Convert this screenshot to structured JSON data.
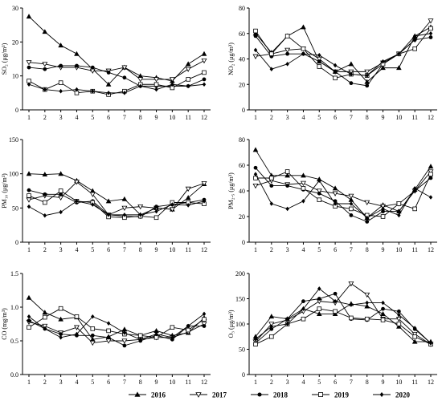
{
  "chart_data": [
    {
      "type": "line",
      "ylabel": "SO₂ (μg/m³)",
      "categories": [
        "1",
        "2",
        "3",
        "4",
        "5",
        "6",
        "7",
        "8",
        "9",
        "10",
        "11",
        "12"
      ],
      "ylim": [
        0,
        30
      ],
      "yticks": [
        0,
        10,
        20,
        30
      ],
      "yticklabels": [
        "0",
        "10",
        "20",
        "30"
      ],
      "series": [
        {
          "name": "2016",
          "values": [
            27.5,
            23,
            19,
            16.5,
            12,
            7.5,
            12.5,
            10,
            9.5,
            8.5,
            13.5,
            16.5
          ]
        },
        {
          "name": "2017",
          "values": [
            14,
            13.5,
            12.5,
            12.5,
            11.5,
            11.5,
            12.5,
            9,
            9,
            9,
            12,
            14.5
          ]
        },
        {
          "name": "2018",
          "values": [
            12.5,
            12,
            13,
            13,
            12.5,
            11,
            9.5,
            7,
            7,
            7,
            7,
            9
          ]
        },
        {
          "name": "2019",
          "values": [
            8.5,
            6,
            8,
            5,
            5.5,
            4.5,
            5.5,
            7.5,
            7.5,
            6.5,
            9,
            11
          ]
        },
        {
          "name": "2020",
          "values": [
            7.5,
            6,
            5.5,
            6,
            5.5,
            5,
            5,
            7,
            6,
            7.5,
            7,
            7.5
          ]
        }
      ]
    },
    {
      "type": "line",
      "ylabel": "NO₂ (μg/m³)",
      "categories": [
        "1",
        "2",
        "3",
        "4",
        "5",
        "6",
        "7",
        "8",
        "9",
        "10",
        "11",
        "12"
      ],
      "ylim": [
        0,
        80
      ],
      "yticks": [
        0,
        20,
        40,
        60,
        80
      ],
      "yticklabels": [
        "0",
        "20",
        "40",
        "60",
        "80"
      ],
      "series": [
        {
          "name": "2016",
          "values": [
            60,
            45,
            58,
            65,
            38,
            30,
            36,
            22,
            33,
            33,
            58,
            65
          ]
        },
        {
          "name": "2017",
          "values": [
            42,
            44,
            47,
            48,
            40,
            30,
            30,
            30,
            37,
            44,
            55,
            70
          ]
        },
        {
          "name": "2018",
          "values": [
            58,
            42,
            44,
            44,
            38,
            30,
            21,
            19,
            36,
            44,
            55,
            57
          ]
        },
        {
          "name": "2019",
          "values": [
            62,
            44,
            58,
            48,
            34,
            25,
            28,
            27,
            36,
            44,
            48,
            64
          ]
        },
        {
          "name": "2020",
          "values": [
            47,
            32,
            36,
            44,
            43,
            35,
            28,
            27,
            38,
            44,
            58,
            60
          ]
        }
      ]
    },
    {
      "type": "line",
      "ylabel": "PM₁₀ (μg/m³)",
      "categories": [
        "1",
        "2",
        "3",
        "4",
        "5",
        "6",
        "7",
        "8",
        "9",
        "10",
        "11",
        "12"
      ],
      "ylim": [
        0,
        150
      ],
      "yticks": [
        0,
        50,
        100,
        150
      ],
      "yticklabels": [
        "0",
        "50",
        "100",
        "150"
      ],
      "series": [
        {
          "name": "2016",
          "values": [
            100,
            99,
            100,
            90,
            75,
            60,
            63,
            40,
            50,
            48,
            65,
            85
          ]
        },
        {
          "name": "2017",
          "values": [
            62,
            68,
            65,
            88,
            70,
            40,
            50,
            52,
            50,
            48,
            78,
            86
          ]
        },
        {
          "name": "2018",
          "values": [
            76,
            70,
            70,
            58,
            60,
            40,
            38,
            37,
            52,
            55,
            58,
            62
          ]
        },
        {
          "name": "2019",
          "values": [
            68,
            58,
            75,
            60,
            58,
            37,
            36,
            38,
            36,
            58,
            58,
            56
          ]
        },
        {
          "name": "2020",
          "values": [
            52,
            39,
            44,
            60,
            55,
            40,
            40,
            40,
            45,
            55,
            54,
            60
          ]
        }
      ]
    },
    {
      "type": "line",
      "ylabel": "PM₂.₅ (μg/m³)",
      "categories": [
        "1",
        "2",
        "3",
        "4",
        "5",
        "6",
        "7",
        "8",
        "9",
        "10",
        "11",
        "12"
      ],
      "ylim": [
        0,
        80
      ],
      "yticks": [
        0,
        20,
        40,
        60,
        80
      ],
      "yticklabels": [
        "0",
        "20",
        "40",
        "60",
        "80"
      ],
      "series": [
        {
          "name": "2016",
          "values": [
            72,
            52,
            52,
            52,
            49,
            42,
            33,
            19,
            29,
            24,
            41,
            59
          ]
        },
        {
          "name": "2017",
          "values": [
            44,
            48,
            45,
            46,
            40,
            38,
            36,
            31,
            28,
            30,
            40,
            55
          ]
        },
        {
          "name": "2018",
          "values": [
            58,
            44,
            44,
            41,
            38,
            32,
            21,
            16,
            24,
            24,
            40,
            50
          ]
        },
        {
          "name": "2019",
          "values": [
            50,
            50,
            55,
            42,
            33,
            28,
            26,
            21,
            20,
            30,
            26,
            53
          ]
        },
        {
          "name": "2020",
          "values": [
            53,
            30,
            26,
            32,
            48,
            30,
            30,
            19,
            26,
            21,
            42,
            35
          ]
        }
      ]
    },
    {
      "type": "line",
      "ylabel": "CO (mg/m³)",
      "categories": [
        "1",
        "2",
        "3",
        "4",
        "5",
        "6",
        "7",
        "8",
        "9",
        "10",
        "11",
        "12"
      ],
      "ylim": [
        0,
        1.5
      ],
      "yticks": [
        0,
        0.5,
        1.0,
        1.5
      ],
      "yticklabels": [
        "0.0",
        "0.5",
        "1.0",
        "1.5"
      ],
      "series": [
        {
          "name": "2016",
          "values": [
            1.14,
            0.92,
            0.82,
            0.85,
            0.52,
            0.56,
            0.67,
            0.58,
            0.65,
            0.58,
            0.62,
            0.84
          ]
        },
        {
          "name": "2017",
          "values": [
            0.78,
            0.72,
            0.62,
            0.7,
            0.47,
            0.5,
            0.5,
            0.52,
            0.55,
            0.55,
            0.63,
            0.75
          ]
        },
        {
          "name": "2018",
          "values": [
            0.8,
            0.68,
            0.6,
            0.58,
            0.58,
            0.55,
            0.43,
            0.5,
            0.58,
            0.52,
            0.72,
            0.72
          ]
        },
        {
          "name": "2019",
          "values": [
            0.7,
            0.85,
            0.98,
            0.86,
            0.68,
            0.65,
            0.6,
            0.58,
            0.55,
            0.7,
            0.66,
            0.82
          ]
        },
        {
          "name": "2020",
          "values": [
            0.86,
            0.68,
            0.55,
            0.6,
            0.86,
            0.76,
            0.62,
            0.52,
            0.6,
            0.55,
            0.72,
            0.9
          ]
        }
      ]
    },
    {
      "type": "line",
      "ylabel": "O₃ (μg/m³)",
      "categories": [
        "1",
        "2",
        "3",
        "4",
        "5",
        "6",
        "7",
        "8",
        "9",
        "10",
        "11",
        "12"
      ],
      "ylim": [
        0,
        200
      ],
      "yticks": [
        0,
        50,
        100,
        150,
        200
      ],
      "yticklabels": [
        "0",
        "50",
        "100",
        "150",
        "200"
      ],
      "series": [
        {
          "name": "2016",
          "values": [
            75,
            115,
            110,
            130,
            120,
            120,
            140,
            135,
            120,
            95,
            65,
            65
          ]
        },
        {
          "name": "2017",
          "values": [
            65,
            100,
            108,
            125,
            145,
            142,
            180,
            158,
            110,
            110,
            80,
            60
          ]
        },
        {
          "name": "2018",
          "values": [
            62,
            90,
            110,
            145,
            150,
            160,
            110,
            108,
            130,
            125,
            90,
            62
          ]
        },
        {
          "name": "2019",
          "values": [
            60,
            75,
            100,
            110,
            130,
            125,
            112,
            110,
            108,
            100,
            75,
            60
          ]
        },
        {
          "name": "2020",
          "values": [
            70,
            95,
            100,
            130,
            170,
            145,
            138,
            142,
            142,
            118,
            92,
            62
          ]
        }
      ]
    }
  ],
  "legend": {
    "items": [
      {
        "label": "2016",
        "marker": "triangle-up-filled"
      },
      {
        "label": "2017",
        "marker": "triangle-down-open"
      },
      {
        "label": "2018",
        "marker": "circle-filled"
      },
      {
        "label": "2019",
        "marker": "square-open"
      },
      {
        "label": "2020",
        "marker": "diamond-filled"
      }
    ]
  }
}
